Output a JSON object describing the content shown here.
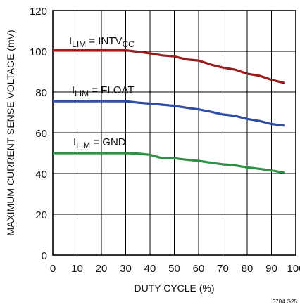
{
  "chart_data": {
    "type": "line",
    "xlabel": "DUTY CYCLE (%)",
    "ylabel": "MAXIMUM CURRENT SENSE VOLTAGE (mV)",
    "xlim": [
      0,
      100
    ],
    "ylim": [
      0,
      120
    ],
    "x_ticks": [
      "0",
      "10",
      "20",
      "30",
      "40",
      "50",
      "60",
      "70",
      "80",
      "90",
      "100"
    ],
    "y_ticks": [
      "0",
      "20",
      "40",
      "60",
      "80",
      "100",
      "120"
    ],
    "grid": true,
    "figure_code": "3784 G25",
    "series": [
      {
        "label": {
          "main": "I",
          "sub": "LIM",
          "mid": " = INTV",
          "sub2": "CC"
        },
        "color": "#9b1c1c",
        "x": [
          0,
          5,
          10,
          15,
          20,
          25,
          30,
          35,
          40,
          45,
          50,
          55,
          60,
          65,
          70,
          75,
          80,
          85,
          90,
          95
        ],
        "y": [
          100.5,
          100.5,
          100.5,
          100.5,
          100.5,
          100.5,
          100.5,
          99.8,
          99,
          98,
          97.5,
          96,
          95.5,
          93.5,
          92,
          91,
          89,
          88,
          86,
          84.5
        ]
      },
      {
        "label": {
          "main": "I",
          "sub": "LIM",
          "mid": " = FLOAT",
          "sub2": ""
        },
        "color": "#2e4da6",
        "x": [
          0,
          5,
          10,
          15,
          20,
          25,
          30,
          35,
          40,
          45,
          50,
          55,
          60,
          65,
          70,
          75,
          80,
          85,
          90,
          95
        ],
        "y": [
          75.5,
          75.5,
          75.5,
          75.5,
          75.5,
          75.5,
          75.5,
          74.8,
          74.3,
          73.8,
          73.2,
          72.3,
          71.5,
          70.3,
          69,
          68.3,
          66.8,
          65.8,
          64.3,
          63.5
        ]
      },
      {
        "label": {
          "main": "I",
          "sub": "LIM",
          "mid": " = GND",
          "sub2": ""
        },
        "color": "#2f8f46",
        "x": [
          0,
          5,
          10,
          15,
          20,
          25,
          30,
          35,
          40,
          45,
          50,
          55,
          60,
          65,
          70,
          75,
          80,
          85,
          90,
          95
        ],
        "y": [
          50,
          50,
          50,
          50,
          50,
          50,
          50,
          49.8,
          49.2,
          47.5,
          47.5,
          46.8,
          46.2,
          45.3,
          44.5,
          44,
          43,
          42.3,
          41.5,
          40.5
        ]
      }
    ]
  }
}
